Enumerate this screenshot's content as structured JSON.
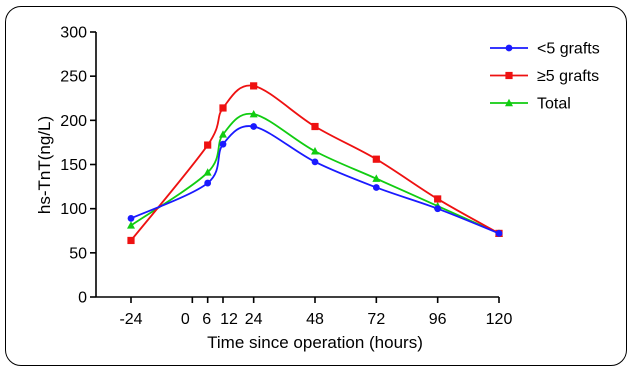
{
  "chart_data": {
    "type": "line",
    "xlabel": "Time since operation (hours)",
    "ylabel": "hs-TnT(ng/L)",
    "xlim": [
      -24,
      120
    ],
    "ylim": [
      0,
      300
    ],
    "x_ticks": [
      -24,
      0,
      6,
      12,
      24,
      48,
      72,
      96,
      120
    ],
    "x_tick_labels": [
      "-24",
      "0",
      "6",
      "12",
      "24",
      "48",
      "72",
      "96",
      "120"
    ],
    "y_ticks": [
      0,
      50,
      100,
      150,
      200,
      250,
      300
    ],
    "y_tick_labels": [
      "0",
      "50",
      "100",
      "150",
      "200",
      "250",
      "300"
    ],
    "grid": false,
    "legend_position": "top-right",
    "x": [
      -24,
      6,
      12,
      24,
      48,
      72,
      96,
      120
    ],
    "series": [
      {
        "name": "<5 grafts",
        "color": "#1a1aff",
        "marker": "circle",
        "values": [
          89,
          129,
          173,
          193,
          153,
          124,
          100,
          72
        ]
      },
      {
        "name": "≥5 grafts",
        "color": "#ee1111",
        "marker": "square",
        "values": [
          64,
          172,
          214,
          239,
          193,
          156,
          111,
          72
        ]
      },
      {
        "name": "Total",
        "color": "#11cc11",
        "marker": "triangle",
        "values": [
          81,
          141,
          184,
          207,
          165,
          134,
          103,
          72
        ]
      }
    ]
  }
}
